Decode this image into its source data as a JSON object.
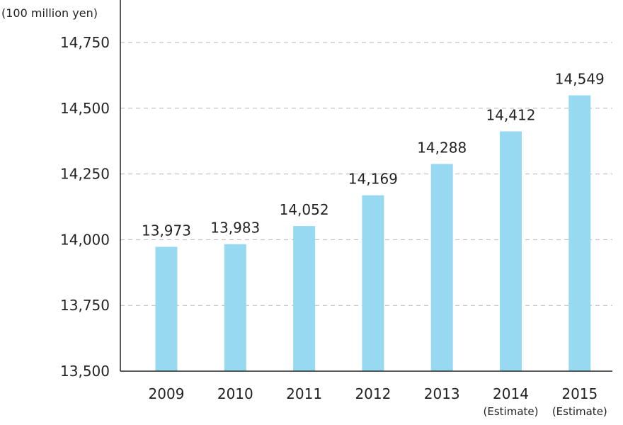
{
  "chart_data": {
    "type": "bar",
    "unit_label": "(100 million yen)",
    "categories": [
      "2009",
      "2010",
      "2011",
      "2012",
      "2013",
      "2014",
      "2015"
    ],
    "category_sublabels": [
      "",
      "",
      "",
      "",
      "",
      "(Estimate)",
      "(Estimate)"
    ],
    "values": [
      13973,
      13983,
      14052,
      14169,
      14288,
      14412,
      14549
    ],
    "value_labels": [
      "13,973",
      "13,983",
      "14,052",
      "14,169",
      "14,288",
      "14,412",
      "14,549"
    ],
    "ylim": [
      13500,
      14750
    ],
    "yticks": [
      13500,
      13750,
      14000,
      14250,
      14500,
      14750
    ],
    "ytick_labels": [
      "13,500",
      "13,750",
      "14,000",
      "14,250",
      "14,500",
      "14,750"
    ],
    "grid": true,
    "bar_color": "#98d9f2",
    "axis_color": "#222222",
    "grid_color": "#b5b5b5"
  }
}
